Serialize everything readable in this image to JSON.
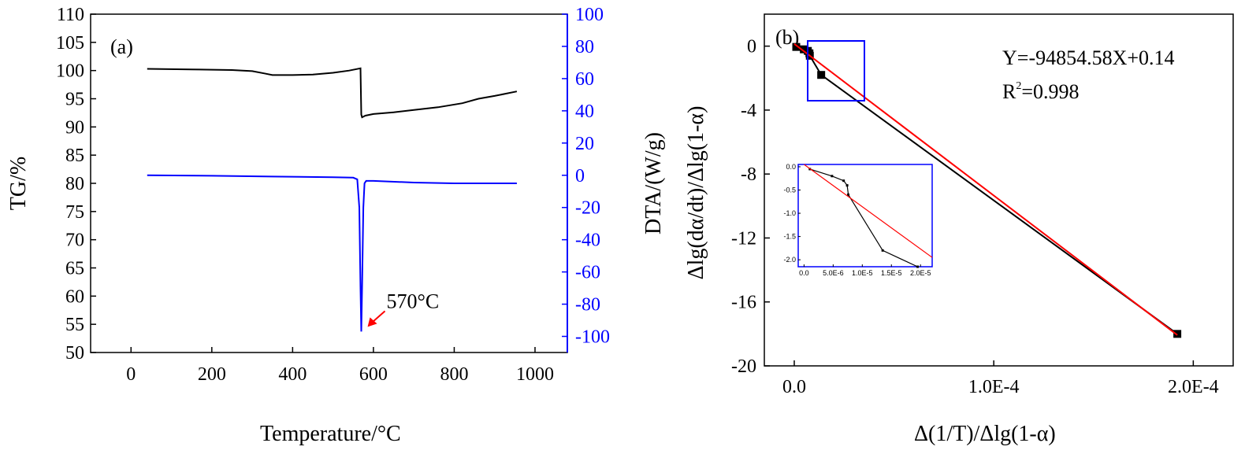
{
  "chart_data": [
    {
      "type": "line",
      "panel_label": "(a)",
      "xlabel": "Temperature/°C",
      "ylabel": "TG/%",
      "y2label": "DTA/(W/g)",
      "xlim": [
        -100,
        1080
      ],
      "ylim": [
        50,
        110
      ],
      "y2lim": [
        -110,
        100
      ],
      "x_ticks": [
        0,
        200,
        400,
        600,
        800,
        1000
      ],
      "y_ticks": [
        50,
        55,
        60,
        65,
        70,
        75,
        80,
        85,
        90,
        95,
        100,
        105,
        110
      ],
      "y2_ticks": [
        -100,
        -80,
        -60,
        -40,
        -20,
        0,
        20,
        40,
        60,
        80,
        100
      ],
      "series": [
        {
          "name": "TG",
          "axis": "left",
          "color": "#000000",
          "points": [
            [
              40,
              100.3
            ],
            [
              150,
              100.2
            ],
            [
              250,
              100.1
            ],
            [
              300,
              99.9
            ],
            [
              330,
              99.5
            ],
            [
              350,
              99.2
            ],
            [
              400,
              99.2
            ],
            [
              450,
              99.3
            ],
            [
              500,
              99.6
            ],
            [
              540,
              100.0
            ],
            [
              568,
              100.4
            ],
            [
              570,
              92.2
            ],
            [
              572,
              91.7
            ],
            [
              580,
              92.0
            ],
            [
              600,
              92.3
            ],
            [
              650,
              92.6
            ],
            [
              700,
              93.0
            ],
            [
              760,
              93.5
            ],
            [
              820,
              94.2
            ],
            [
              860,
              95.0
            ],
            [
              900,
              95.5
            ],
            [
              955,
              96.3
            ]
          ]
        },
        {
          "name": "DTA",
          "axis": "right",
          "color": "#0000ff",
          "points": [
            [
              40,
              0
            ],
            [
              200,
              -0.3
            ],
            [
              350,
              -0.8
            ],
            [
              500,
              -1.2
            ],
            [
              550,
              -1.5
            ],
            [
              560,
              -2.5
            ],
            [
              565,
              -20
            ],
            [
              568,
              -70
            ],
            [
              570,
              -97
            ],
            [
              572,
              -70
            ],
            [
              575,
              -20
            ],
            [
              578,
              -5
            ],
            [
              582,
              -3.5
            ],
            [
              600,
              -3.5
            ],
            [
              700,
              -4.5
            ],
            [
              800,
              -5
            ],
            [
              955,
              -5
            ]
          ]
        }
      ],
      "annotations": [
        {
          "text": "570°C",
          "x": 570,
          "y_left": 54,
          "arrow_color": "#ff0000"
        }
      ]
    },
    {
      "type": "line",
      "panel_label": "(b)",
      "xlabel": "Δ(1/T)/Δlg(1-α)",
      "ylabel": "Δlg(dα/dt)/Δlg(1-α)",
      "xlim": [
        -1.5e-05,
        0.00022
      ],
      "ylim": [
        -20,
        2
      ],
      "x_ticks": [
        0.0,
        0.0001,
        0.0002
      ],
      "x_tick_labels": [
        "0.0",
        "1.0E-4",
        "2.0E-4"
      ],
      "y_ticks": [
        0,
        -4,
        -8,
        -12,
        -16,
        -20
      ],
      "equation": "Y=-94854.58X+0.14",
      "r2_prefix": "R",
      "r2_sup": "2",
      "r2_suffix": "=0.998",
      "series": [
        {
          "name": "data",
          "color": "#000000",
          "marker": "square",
          "points": [
            [
              1e-06,
              -0.05
            ],
            [
              4.8e-06,
              -0.2
            ],
            [
              6.8e-06,
              -0.3
            ],
            [
              7.6e-06,
              -0.45
            ],
            [
              7.8e-06,
              -0.6
            ],
            [
              1.35e-05,
              -1.8
            ],
            [
              0.000192,
              -18.0
            ]
          ]
        },
        {
          "name": "fit",
          "color": "#ff0000",
          "points": [
            [
              0,
              0.14
            ],
            [
              0.000192,
              -18.07
            ]
          ]
        }
      ],
      "inset": {
        "xlim": [
          -1e-06,
          2.2e-05
        ],
        "ylim": [
          -2.15,
          0.05
        ],
        "x_ticks": [
          0,
          5e-06,
          1e-05,
          1.5e-05,
          2e-05
        ],
        "x_tick_labels": [
          "0.0",
          "5.0E-6",
          "1.0E-5",
          "1.5E-5",
          "2.0E-5"
        ],
        "y_ticks": [
          0,
          -0.5,
          -1.0,
          -1.5,
          -2.0
        ],
        "y_tick_labels": [
          "0.0",
          "-0.5",
          "-1.0",
          "-1.5",
          "-2.0"
        ],
        "data_points": [
          [
            1e-06,
            -0.05
          ],
          [
            4.8e-06,
            -0.2
          ],
          [
            6.8e-06,
            -0.3
          ],
          [
            7.4e-06,
            -0.4
          ],
          [
            7.6e-06,
            -0.6
          ],
          [
            1.35e-05,
            -1.8
          ],
          [
            1.95e-05,
            -2.15
          ]
        ],
        "fit_points": [
          [
            0,
            0.14
          ],
          [
            2.2e-05,
            -1.95
          ]
        ]
      }
    }
  ]
}
